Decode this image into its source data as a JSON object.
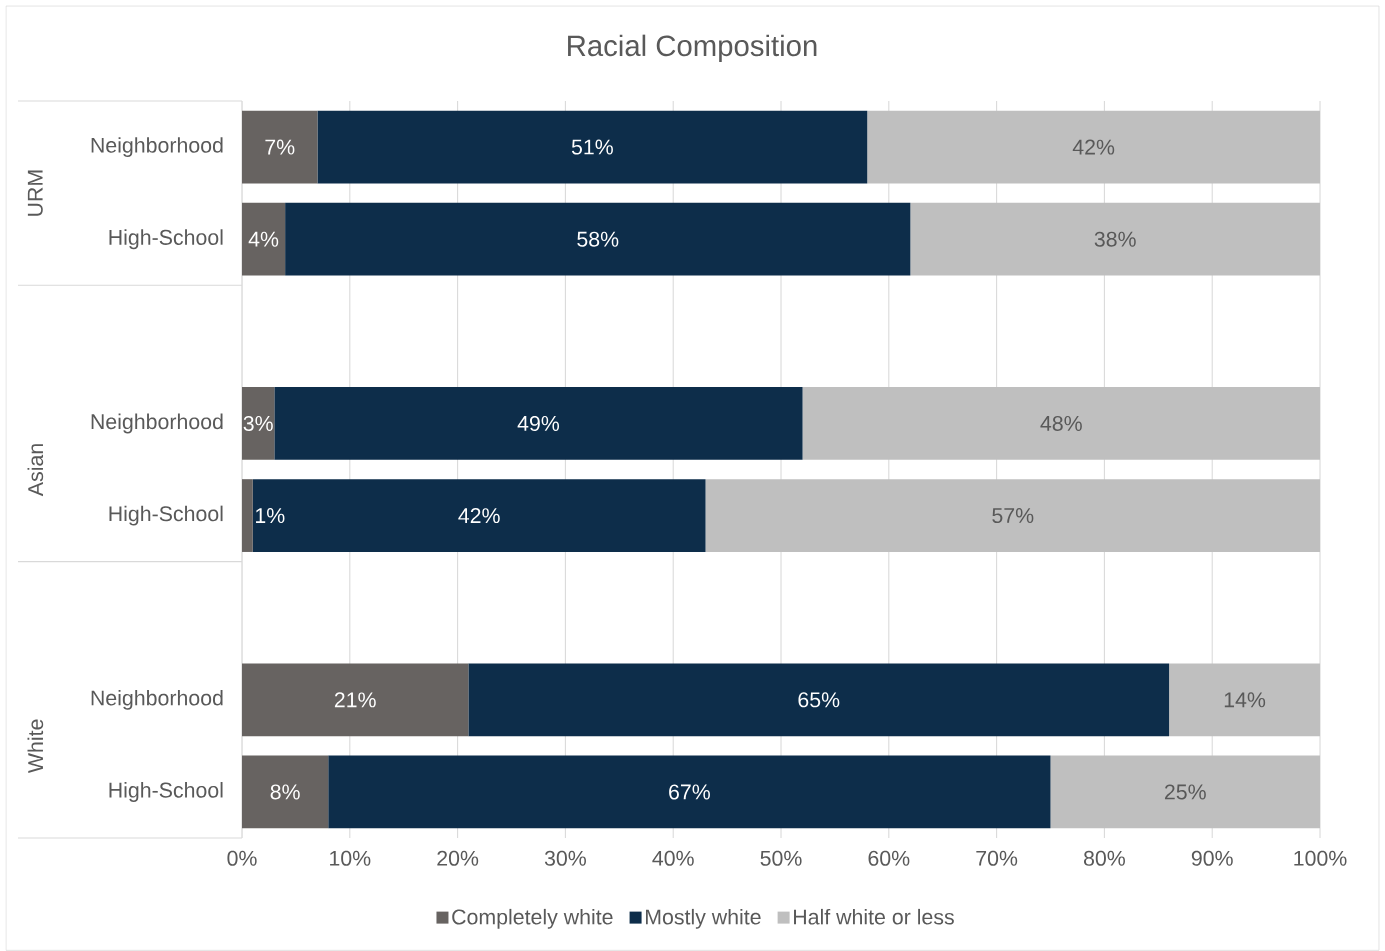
{
  "chart_data": {
    "type": "bar",
    "title": "Racial Composition",
    "orientation": "horizontal",
    "stacked": true,
    "categories": [
      "Neighborhood",
      "High-School",
      null,
      "Neighborhood",
      "High-School",
      null,
      "Neighborhood",
      "High-School"
    ],
    "series": [
      {
        "name": "Completely white",
        "color": "#676361",
        "values": [
          7,
          4,
          null,
          3,
          1,
          null,
          21,
          8
        ],
        "value_labels": [
          "7%",
          "4%",
          null,
          "3%",
          "1%",
          null,
          "21%",
          "8%"
        ]
      },
      {
        "name": "Mostly white",
        "color": "#0d2d4a",
        "values": [
          51,
          58,
          null,
          49,
          42,
          null,
          65,
          67
        ],
        "value_labels": [
          "51%",
          "58%",
          null,
          "49%",
          "42%",
          null,
          "65%",
          "67%"
        ]
      },
      {
        "name": "Half white or less",
        "color": "#bfbfbf",
        "values": [
          42,
          38,
          null,
          48,
          57,
          null,
          14,
          25
        ],
        "value_labels": [
          "42%",
          "38%",
          null,
          "48%",
          "57%",
          null,
          "14%",
          "25%"
        ]
      }
    ],
    "annotations": [
      "URM",
      "Asian",
      "White"
    ],
    "xlim": [
      0,
      100
    ],
    "xticks": [
      {
        "value": 0,
        "label": "0%"
      },
      {
        "value": 10,
        "label": "10%"
      },
      {
        "value": 20,
        "label": "20%"
      },
      {
        "value": 30,
        "label": "30%"
      },
      {
        "value": 40,
        "label": "40%"
      },
      {
        "value": 50,
        "label": "50%"
      },
      {
        "value": 60,
        "label": "60%"
      },
      {
        "value": 70,
        "label": "70%"
      },
      {
        "value": 80,
        "label": "80%"
      },
      {
        "value": 90,
        "label": "90%"
      },
      {
        "value": 100,
        "label": "100%"
      }
    ],
    "grid": "x",
    "legend": "bottom"
  }
}
